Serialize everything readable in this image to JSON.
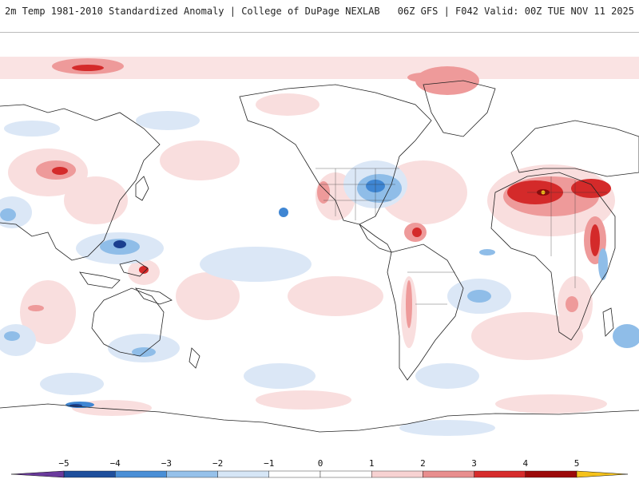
{
  "header": {
    "title": "2m Temp 1981-2010 Standardized Anomaly | College of DuPage NEXLAB",
    "run_info": "06Z GFS | F042 Valid: 00Z TUE NOV 11 2025"
  },
  "map": {
    "projection": "Pacific-centered equirectangular",
    "field": "2m temperature standardized anomaly"
  },
  "colorbar": {
    "tick_labels": [
      "−5",
      "−4",
      "−3",
      "−2",
      "−1",
      "0",
      "1",
      "2",
      "3",
      "4",
      "5"
    ],
    "colors": [
      "#3a3a9c",
      "#1f4f9c",
      "#4a8fd6",
      "#96c1ea",
      "#d6e6f6",
      "#ffffff",
      "#ffffff",
      "#f7d2d2",
      "#e88e8e",
      "#d62c2c",
      "#9c0a0a",
      "#f5c21b"
    ],
    "low_end_color": "#6a3a9c",
    "high_end_color": "#f5c21b"
  },
  "colors": {
    "warm_light": "#f9dede",
    "warm_mid": "#ee9a9a",
    "warm_strong": "#d42a2a",
    "warm_extreme": "#8e0a0a",
    "cool_light": "#dbe7f6",
    "cool_mid": "#8fbde8",
    "cool_strong": "#3f86d3",
    "cool_extreme": "#1a3f8f",
    "coast": "#222222"
  }
}
